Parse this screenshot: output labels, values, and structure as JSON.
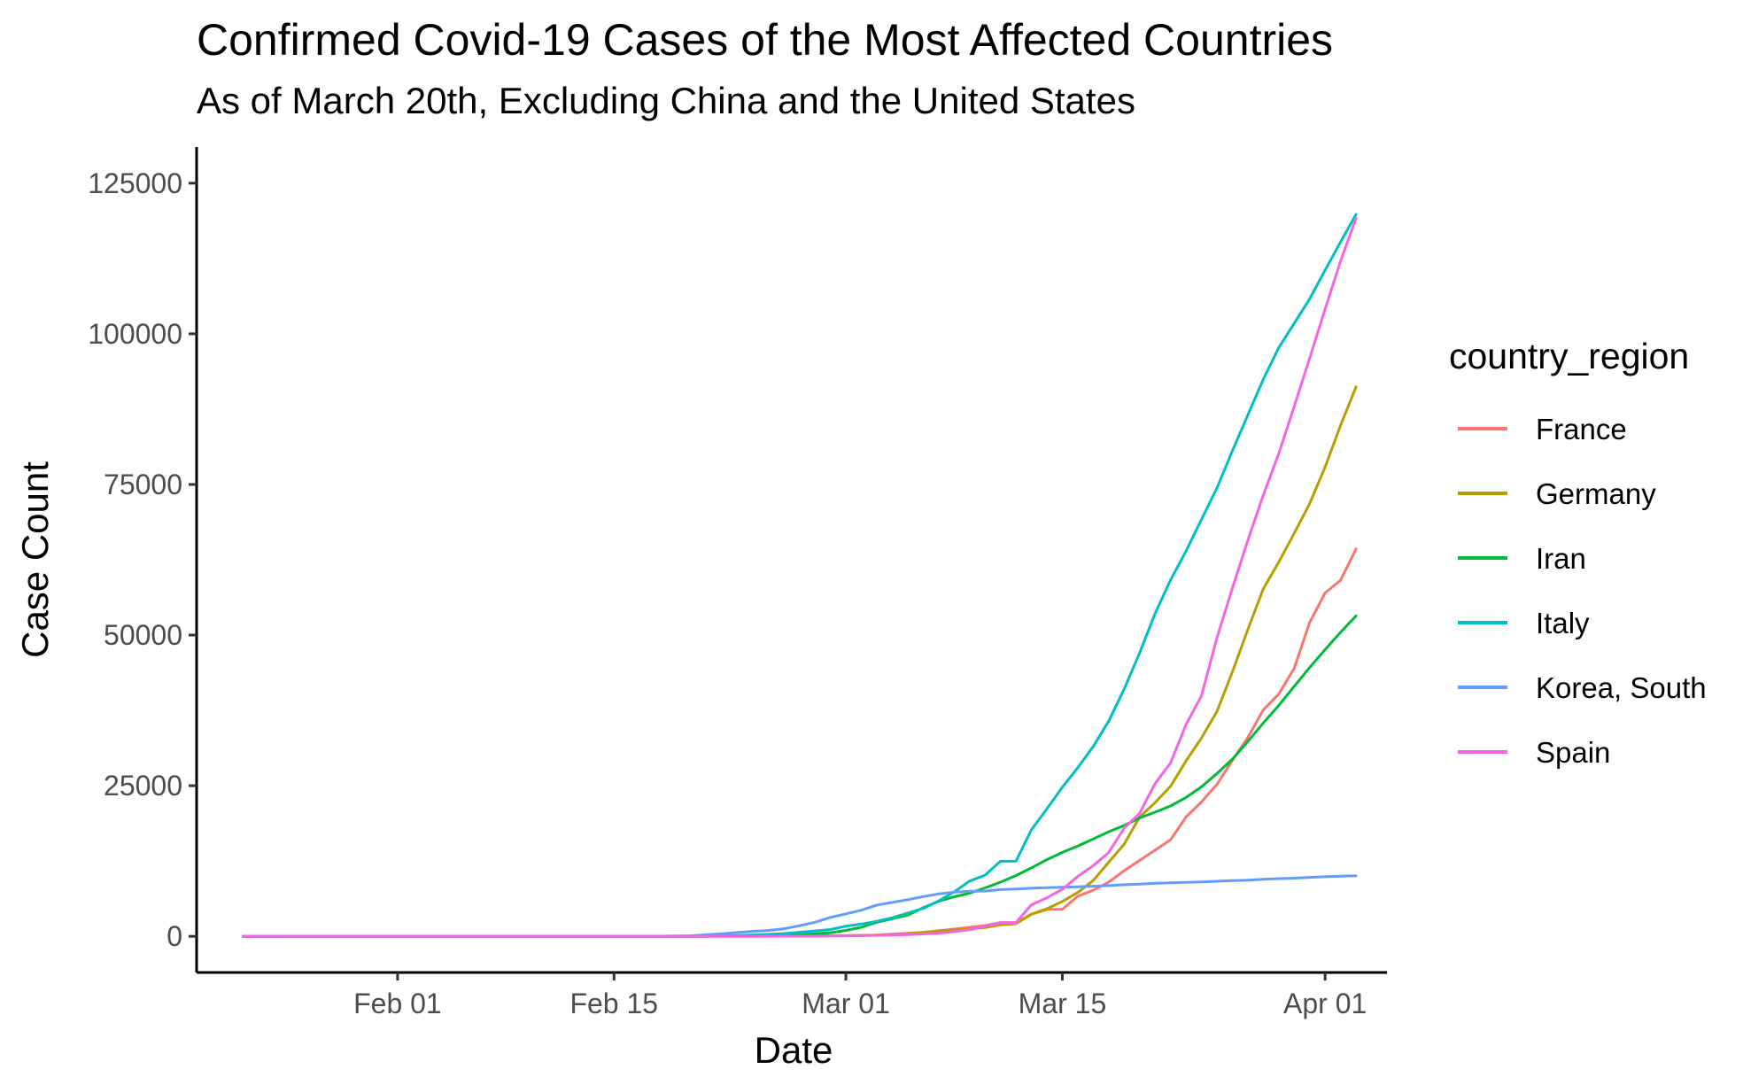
{
  "chart_data": {
    "type": "line",
    "title": "Confirmed Covid-19 Cases of the Most Affected Countries",
    "subtitle": "As of March 20th, Excluding China and the United States",
    "xlabel": "Date",
    "ylabel": "Case Count",
    "x_type": "date",
    "xlim": [
      "2020-01-19",
      "2020-04-05"
    ],
    "ylim": [
      -6000,
      131000
    ],
    "x_ticks": [
      {
        "date": "2020-02-01",
        "label": "Feb 01"
      },
      {
        "date": "2020-02-15",
        "label": "Feb 15"
      },
      {
        "date": "2020-03-01",
        "label": "Mar 01"
      },
      {
        "date": "2020-03-15",
        "label": "Mar 15"
      },
      {
        "date": "2020-04-01",
        "label": "Apr 01"
      }
    ],
    "y_ticks": [
      {
        "value": 0,
        "label": "0"
      },
      {
        "value": 25000,
        "label": "25000"
      },
      {
        "value": 50000,
        "label": "50000"
      },
      {
        "value": 75000,
        "label": "75000"
      },
      {
        "value": 100000,
        "label": "100000"
      },
      {
        "value": 125000,
        "label": "125000"
      }
    ],
    "grid": false,
    "legend": {
      "title": "country_region",
      "position": "right"
    },
    "series": [
      {
        "name": "France",
        "color": "#F8766D",
        "points": [
          [
            "2020-01-22",
            0
          ],
          [
            "2020-02-24",
            12
          ],
          [
            "2020-02-29",
            100
          ],
          [
            "2020-03-03",
            212
          ],
          [
            "2020-03-06",
            653
          ],
          [
            "2020-03-08",
            1209
          ],
          [
            "2020-03-10",
            1784
          ],
          [
            "2020-03-11",
            2284
          ],
          [
            "2020-03-12",
            2290
          ],
          [
            "2020-03-13",
            3661
          ],
          [
            "2020-03-14",
            4469
          ],
          [
            "2020-03-15",
            4500
          ],
          [
            "2020-03-16",
            6650
          ],
          [
            "2020-03-17",
            7660
          ],
          [
            "2020-03-18",
            9000
          ],
          [
            "2020-03-19",
            10900
          ],
          [
            "2020-03-20",
            12600
          ],
          [
            "2020-03-21",
            14300
          ],
          [
            "2020-03-22",
            16000
          ],
          [
            "2020-03-23",
            19800
          ],
          [
            "2020-03-24",
            22300
          ],
          [
            "2020-03-25",
            25200
          ],
          [
            "2020-03-26",
            29200
          ],
          [
            "2020-03-27",
            33000
          ],
          [
            "2020-03-28",
            37600
          ],
          [
            "2020-03-29",
            40200
          ],
          [
            "2020-03-30",
            44500
          ],
          [
            "2020-03-31",
            52100
          ],
          [
            "2020-04-01",
            57000
          ],
          [
            "2020-04-02",
            59100
          ],
          [
            "2020-04-03",
            64300
          ]
        ]
      },
      {
        "name": "Germany",
        "color": "#B79F00",
        "points": [
          [
            "2020-01-22",
            0
          ],
          [
            "2020-02-24",
            16
          ],
          [
            "2020-02-29",
            79
          ],
          [
            "2020-03-02",
            150
          ],
          [
            "2020-03-04",
            262
          ],
          [
            "2020-03-06",
            670
          ],
          [
            "2020-03-08",
            1040
          ],
          [
            "2020-03-10",
            1457
          ],
          [
            "2020-03-11",
            1908
          ],
          [
            "2020-03-12",
            2078
          ],
          [
            "2020-03-13",
            3675
          ],
          [
            "2020-03-14",
            4585
          ],
          [
            "2020-03-15",
            5795
          ],
          [
            "2020-03-16",
            7272
          ],
          [
            "2020-03-17",
            9257
          ],
          [
            "2020-03-18",
            12300
          ],
          [
            "2020-03-19",
            15300
          ],
          [
            "2020-03-20",
            19800
          ],
          [
            "2020-03-21",
            22200
          ],
          [
            "2020-03-22",
            24900
          ],
          [
            "2020-03-23",
            29100
          ],
          [
            "2020-03-24",
            32900
          ],
          [
            "2020-03-25",
            37300
          ],
          [
            "2020-03-26",
            43900
          ],
          [
            "2020-03-27",
            50900
          ],
          [
            "2020-03-28",
            57700
          ],
          [
            "2020-03-29",
            62100
          ],
          [
            "2020-03-30",
            66900
          ],
          [
            "2020-03-31",
            71800
          ],
          [
            "2020-04-01",
            77900
          ],
          [
            "2020-04-02",
            84800
          ],
          [
            "2020-04-03",
            91200
          ]
        ]
      },
      {
        "name": "Iran",
        "color": "#00BA38",
        "points": [
          [
            "2020-01-22",
            0
          ],
          [
            "2020-02-19",
            2
          ],
          [
            "2020-02-24",
            61
          ],
          [
            "2020-02-27",
            245
          ],
          [
            "2020-02-29",
            593
          ],
          [
            "2020-03-01",
            978
          ],
          [
            "2020-03-02",
            1501
          ],
          [
            "2020-03-03",
            2336
          ],
          [
            "2020-03-04",
            2922
          ],
          [
            "2020-03-05",
            3513
          ],
          [
            "2020-03-06",
            4747
          ],
          [
            "2020-03-07",
            5823
          ],
          [
            "2020-03-08",
            6566
          ],
          [
            "2020-03-09",
            7161
          ],
          [
            "2020-03-10",
            8042
          ],
          [
            "2020-03-11",
            9000
          ],
          [
            "2020-03-12",
            10075
          ],
          [
            "2020-03-13",
            11364
          ],
          [
            "2020-03-14",
            12729
          ],
          [
            "2020-03-15",
            13938
          ],
          [
            "2020-03-16",
            14991
          ],
          [
            "2020-03-17",
            16169
          ],
          [
            "2020-03-18",
            17361
          ],
          [
            "2020-03-19",
            18407
          ],
          [
            "2020-03-20",
            19644
          ],
          [
            "2020-03-21",
            20610
          ],
          [
            "2020-03-22",
            21638
          ],
          [
            "2020-03-23",
            23049
          ],
          [
            "2020-03-24",
            24811
          ],
          [
            "2020-03-25",
            27017
          ],
          [
            "2020-03-26",
            29406
          ],
          [
            "2020-03-27",
            32332
          ],
          [
            "2020-03-28",
            35408
          ],
          [
            "2020-03-29",
            38309
          ],
          [
            "2020-03-30",
            41495
          ],
          [
            "2020-03-31",
            44605
          ],
          [
            "2020-04-01",
            47593
          ],
          [
            "2020-04-02",
            50468
          ],
          [
            "2020-04-03",
            53183
          ]
        ]
      },
      {
        "name": "Italy",
        "color": "#00BFC4",
        "points": [
          [
            "2020-01-22",
            0
          ],
          [
            "2020-02-20",
            3
          ],
          [
            "2020-02-22",
            62
          ],
          [
            "2020-02-24",
            229
          ],
          [
            "2020-02-26",
            453
          ],
          [
            "2020-02-28",
            888
          ],
          [
            "2020-02-29",
            1128
          ],
          [
            "2020-03-01",
            1694
          ],
          [
            "2020-03-02",
            2036
          ],
          [
            "2020-03-03",
            2502
          ],
          [
            "2020-03-04",
            3089
          ],
          [
            "2020-03-05",
            3858
          ],
          [
            "2020-03-06",
            4636
          ],
          [
            "2020-03-07",
            5883
          ],
          [
            "2020-03-08",
            7375
          ],
          [
            "2020-03-09",
            9172
          ],
          [
            "2020-03-10",
            10149
          ],
          [
            "2020-03-11",
            12462
          ],
          [
            "2020-03-12",
            12462
          ],
          [
            "2020-03-13",
            17660
          ],
          [
            "2020-03-14",
            21157
          ],
          [
            "2020-03-15",
            24747
          ],
          [
            "2020-03-16",
            27980
          ],
          [
            "2020-03-17",
            31506
          ],
          [
            "2020-03-18",
            35713
          ],
          [
            "2020-03-19",
            41035
          ],
          [
            "2020-03-20",
            47021
          ],
          [
            "2020-03-21",
            53578
          ],
          [
            "2020-03-22",
            59138
          ],
          [
            "2020-03-23",
            63927
          ],
          [
            "2020-03-24",
            69176
          ],
          [
            "2020-03-25",
            74386
          ],
          [
            "2020-03-26",
            80589
          ],
          [
            "2020-03-27",
            86498
          ],
          [
            "2020-03-28",
            92472
          ],
          [
            "2020-03-29",
            97689
          ],
          [
            "2020-03-30",
            101739
          ],
          [
            "2020-03-31",
            105792
          ],
          [
            "2020-04-01",
            110574
          ],
          [
            "2020-04-02",
            115242
          ],
          [
            "2020-04-03",
            119827
          ]
        ]
      },
      {
        "name": "Korea, South",
        "color": "#619CFF",
        "points": [
          [
            "2020-01-22",
            1
          ],
          [
            "2020-02-18",
            31
          ],
          [
            "2020-02-20",
            104
          ],
          [
            "2020-02-22",
            433
          ],
          [
            "2020-02-24",
            833
          ],
          [
            "2020-02-25",
            977
          ],
          [
            "2020-02-26",
            1261
          ],
          [
            "2020-02-27",
            1766
          ],
          [
            "2020-02-28",
            2337
          ],
          [
            "2020-02-29",
            3150
          ],
          [
            "2020-03-01",
            3736
          ],
          [
            "2020-03-02",
            4335
          ],
          [
            "2020-03-03",
            5186
          ],
          [
            "2020-03-04",
            5621
          ],
          [
            "2020-03-05",
            6088
          ],
          [
            "2020-03-06",
            6593
          ],
          [
            "2020-03-07",
            7041
          ],
          [
            "2020-03-08",
            7314
          ],
          [
            "2020-03-09",
            7478
          ],
          [
            "2020-03-10",
            7513
          ],
          [
            "2020-03-11",
            7755
          ],
          [
            "2020-03-12",
            7869
          ],
          [
            "2020-03-13",
            7979
          ],
          [
            "2020-03-14",
            8086
          ],
          [
            "2020-03-15",
            8162
          ],
          [
            "2020-03-16",
            8236
          ],
          [
            "2020-03-17",
            8320
          ],
          [
            "2020-03-18",
            8413
          ],
          [
            "2020-03-19",
            8565
          ],
          [
            "2020-03-20",
            8652
          ],
          [
            "2020-03-21",
            8799
          ],
          [
            "2020-03-22",
            8897
          ],
          [
            "2020-03-23",
            8961
          ],
          [
            "2020-03-24",
            9037
          ],
          [
            "2020-03-25",
            9137
          ],
          [
            "2020-03-26",
            9241
          ],
          [
            "2020-03-27",
            9332
          ],
          [
            "2020-03-28",
            9478
          ],
          [
            "2020-03-29",
            9583
          ],
          [
            "2020-03-30",
            9661
          ],
          [
            "2020-03-31",
            9786
          ],
          [
            "2020-04-01",
            9887
          ],
          [
            "2020-04-02",
            9976
          ],
          [
            "2020-04-03",
            10062
          ]
        ]
      },
      {
        "name": "Spain",
        "color": "#F564E3",
        "points": [
          [
            "2020-01-22",
            0
          ],
          [
            "2020-02-25",
            6
          ],
          [
            "2020-02-28",
            32
          ],
          [
            "2020-03-01",
            84
          ],
          [
            "2020-03-03",
            165
          ],
          [
            "2020-03-05",
            282
          ],
          [
            "2020-03-07",
            500
          ],
          [
            "2020-03-09",
            1073
          ],
          [
            "2020-03-10",
            1695
          ],
          [
            "2020-03-11",
            2277
          ],
          [
            "2020-03-12",
            2277
          ],
          [
            "2020-03-13",
            5232
          ],
          [
            "2020-03-14",
            6391
          ],
          [
            "2020-03-15",
            7798
          ],
          [
            "2020-03-16",
            9942
          ],
          [
            "2020-03-17",
            11748
          ],
          [
            "2020-03-18",
            13910
          ],
          [
            "2020-03-19",
            17963
          ],
          [
            "2020-03-20",
            20410
          ],
          [
            "2020-03-21",
            25374
          ],
          [
            "2020-03-22",
            28768
          ],
          [
            "2020-03-23",
            35136
          ],
          [
            "2020-03-24",
            39885
          ],
          [
            "2020-03-25",
            49515
          ],
          [
            "2020-03-26",
            57786
          ],
          [
            "2020-03-27",
            65719
          ],
          [
            "2020-03-28",
            73235
          ],
          [
            "2020-03-29",
            80110
          ],
          [
            "2020-03-30",
            87956
          ],
          [
            "2020-03-31",
            95923
          ],
          [
            "2020-04-01",
            104118
          ],
          [
            "2020-04-02",
            112065
          ],
          [
            "2020-04-03",
            119199
          ]
        ]
      }
    ]
  }
}
